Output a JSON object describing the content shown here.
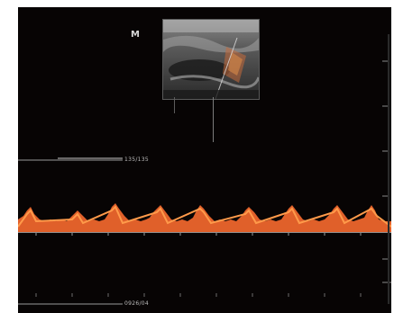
{
  "screen": {
    "probe_marker": "M",
    "scale_top_label": "135/135",
    "scale_bottom_label": "0926/04"
  },
  "colors": {
    "background": "#070404",
    "doppler_trace": "#e0602a",
    "doppler_bright": "#ff9a4a",
    "baseline": "#8e8e8e",
    "text": "#bdbdbd"
  },
  "icons": {
    "probe_marker": "probe-orientation-marker",
    "bmode": "bmode-thumbnail"
  }
}
